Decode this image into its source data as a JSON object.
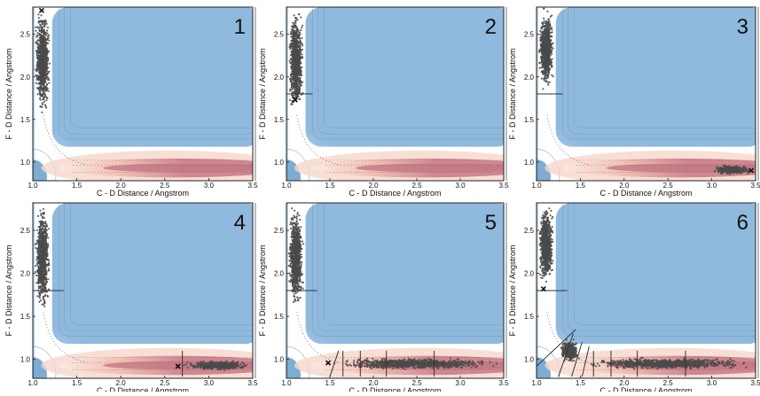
{
  "figure": {
    "panels": [
      {
        "label": "1"
      },
      {
        "label": "2"
      },
      {
        "label": "3"
      },
      {
        "label": "4"
      },
      {
        "label": "5"
      },
      {
        "label": "6"
      }
    ]
  },
  "colors": {
    "plateau": "#8fb9dd",
    "well_blue": "#5e98c8",
    "saddle": "#ffffff",
    "channel_pink": "#cf8791",
    "channel_light": "#f2c3b6",
    "sample_points": "#4a4a4a",
    "marker": "#111111"
  },
  "chart_data": [
    {
      "type": "scatter",
      "panel": "1",
      "xlabel": "C - D Distance / Angstrom",
      "ylabel": "F - D Distance / Angstrom",
      "xlim": [
        1.0,
        3.5
      ],
      "ylim": [
        0.78,
        2.82
      ],
      "xticks": [
        "1.0",
        "1.5",
        "2.0",
        "2.5",
        "3.0",
        "3.5"
      ],
      "yticks": [
        "1.0",
        "1.5",
        "2.0",
        "2.5"
      ],
      "background": "contour of potential energy surface",
      "clusters": [
        {
          "x_range": [
            1.02,
            1.2
          ],
          "y_range": [
            1.55,
            2.82
          ]
        }
      ],
      "marker": {
        "x": 1.1,
        "y": 2.78
      },
      "cut_lines": []
    },
    {
      "type": "scatter",
      "panel": "2",
      "xlabel": "C - D Distance / Angstrom",
      "ylabel": "F - D Distance / Angstrom",
      "xlim": [
        1.0,
        3.5
      ],
      "ylim": [
        0.78,
        2.82
      ],
      "xticks": [
        "1.0",
        "1.5",
        "2.0",
        "2.5",
        "3.0",
        "3.5"
      ],
      "yticks": [
        "1.0",
        "1.5",
        "2.0",
        "2.5"
      ],
      "background": "contour of potential energy surface",
      "clusters": [
        {
          "x_range": [
            1.02,
            1.2
          ],
          "y_range": [
            1.55,
            2.82
          ]
        }
      ],
      "marker": {
        "x": 1.1,
        "y": 1.73
      },
      "cut_lines": [
        {
          "orientation": "horizontal",
          "y": 1.8,
          "x_from": 1.0,
          "x_to": 1.3
        }
      ]
    },
    {
      "type": "scatter",
      "panel": "3",
      "xlabel": "C - D Distance / Angstrom",
      "ylabel": "F - D Distance / Angstrom",
      "xlim": [
        1.0,
        3.5
      ],
      "ylim": [
        0.78,
        2.82
      ],
      "xticks": [
        "1.0",
        "1.5",
        "2.0",
        "2.5",
        "3.0",
        "3.5"
      ],
      "yticks": [
        "1.0",
        "1.5",
        "2.0",
        "2.5"
      ],
      "background": "contour of potential energy surface",
      "clusters": [
        {
          "x_range": [
            1.02,
            1.2
          ],
          "y_range": [
            1.82,
            2.82
          ]
        },
        {
          "x_range": [
            3.0,
            3.48
          ],
          "y_range": [
            0.85,
            0.97
          ]
        }
      ],
      "marker": {
        "x": 3.45,
        "y": 0.9
      },
      "cut_lines": [
        {
          "orientation": "horizontal",
          "y": 1.8,
          "x_from": 1.0,
          "x_to": 1.3
        }
      ]
    },
    {
      "type": "scatter",
      "panel": "4",
      "xlabel": "C - D Distance / Angstrom",
      "ylabel": "F - D Distance / Angstrom",
      "xlim": [
        1.0,
        3.5
      ],
      "ylim": [
        0.78,
        2.82
      ],
      "xticks": [
        "1.0",
        "1.5",
        "2.0",
        "2.5",
        "3.0",
        "3.5"
      ],
      "yticks": [
        "1.0",
        "1.5",
        "2.0",
        "2.5"
      ],
      "background": "contour of potential energy surface",
      "clusters": [
        {
          "x_range": [
            1.02,
            1.2
          ],
          "y_range": [
            1.55,
            2.82
          ]
        },
        {
          "x_range": [
            2.7,
            3.5
          ],
          "y_range": [
            0.87,
            0.99
          ]
        }
      ],
      "marker": {
        "x": 2.65,
        "y": 0.92
      },
      "cut_lines": [
        {
          "orientation": "horizontal",
          "y": 1.8,
          "x_from": 1.0,
          "x_to": 1.35
        },
        {
          "orientation": "vertical",
          "x": 2.7,
          "y_from": 0.8,
          "y_to": 1.1
        }
      ]
    },
    {
      "type": "scatter",
      "panel": "5",
      "xlabel": "C - D Distance / Angstrom",
      "ylabel": "F - D Distance / Angstrom",
      "xlim": [
        1.0,
        3.5
      ],
      "ylim": [
        0.78,
        2.82
      ],
      "xticks": [
        "1.0",
        "1.5",
        "2.0",
        "2.5",
        "3.0",
        "3.5"
      ],
      "yticks": [
        "1.0",
        "1.5",
        "2.0",
        "2.5"
      ],
      "background": "contour of potential energy surface",
      "clusters": [
        {
          "x_range": [
            1.02,
            1.2
          ],
          "y_range": [
            1.55,
            2.82
          ]
        },
        {
          "x_range": [
            1.45,
            3.5
          ],
          "y_range": [
            0.88,
            1.02
          ]
        }
      ],
      "marker": {
        "x": 1.48,
        "y": 0.96
      },
      "cut_lines": [
        {
          "orientation": "horizontal",
          "y": 1.8,
          "x_from": 1.0,
          "x_to": 1.35
        },
        {
          "orientation": "slanted",
          "x1": 1.5,
          "y1": 0.8,
          "x2": 1.6,
          "y2": 1.1
        },
        {
          "orientation": "vertical",
          "x": 1.65,
          "y_from": 0.8,
          "y_to": 1.1
        },
        {
          "orientation": "vertical",
          "x": 1.85,
          "y_from": 0.8,
          "y_to": 1.1
        },
        {
          "orientation": "vertical",
          "x": 2.15,
          "y_from": 0.8,
          "y_to": 1.1
        },
        {
          "orientation": "vertical",
          "x": 2.7,
          "y_from": 0.8,
          "y_to": 1.1
        }
      ]
    },
    {
      "type": "scatter",
      "panel": "6",
      "xlabel": "C - D Distance / Angstrom",
      "ylabel": "F - D Distance / Angstrom",
      "xlim": [
        1.0,
        3.5
      ],
      "ylim": [
        0.78,
        2.82
      ],
      "xticks": [
        "1.0",
        "1.5",
        "2.0",
        "2.5",
        "3.0",
        "3.5"
      ],
      "yticks": [
        "1.0",
        "1.5",
        "2.0",
        "2.5"
      ],
      "background": "contour of potential energy surface",
      "clusters": [
        {
          "x_range": [
            1.02,
            1.2
          ],
          "y_range": [
            1.85,
            2.82
          ]
        },
        {
          "x_range": [
            1.25,
            1.5
          ],
          "y_range": [
            0.95,
            1.25
          ]
        },
        {
          "x_range": [
            1.5,
            3.5
          ],
          "y_range": [
            0.88,
            1.02
          ]
        }
      ],
      "marker": {
        "x": 1.08,
        "y": 1.82
      },
      "cut_lines": [
        {
          "orientation": "horizontal",
          "y": 1.8,
          "x_from": 1.0,
          "x_to": 1.35
        },
        {
          "orientation": "slanted",
          "x1": 1.0,
          "y1": 0.92,
          "x2": 1.45,
          "y2": 1.35
        },
        {
          "orientation": "slanted",
          "x1": 1.25,
          "y1": 0.8,
          "x2": 1.42,
          "y2": 1.3
        },
        {
          "orientation": "slanted",
          "x1": 1.4,
          "y1": 0.8,
          "x2": 1.52,
          "y2": 1.2
        },
        {
          "orientation": "slanted",
          "x1": 1.52,
          "y1": 0.8,
          "x2": 1.6,
          "y2": 1.15
        },
        {
          "orientation": "vertical",
          "x": 1.65,
          "y_from": 0.8,
          "y_to": 1.1
        },
        {
          "orientation": "vertical",
          "x": 1.85,
          "y_from": 0.8,
          "y_to": 1.1
        },
        {
          "orientation": "vertical",
          "x": 2.15,
          "y_from": 0.8,
          "y_to": 1.1
        },
        {
          "orientation": "vertical",
          "x": 2.7,
          "y_from": 0.8,
          "y_to": 1.1
        }
      ]
    }
  ]
}
